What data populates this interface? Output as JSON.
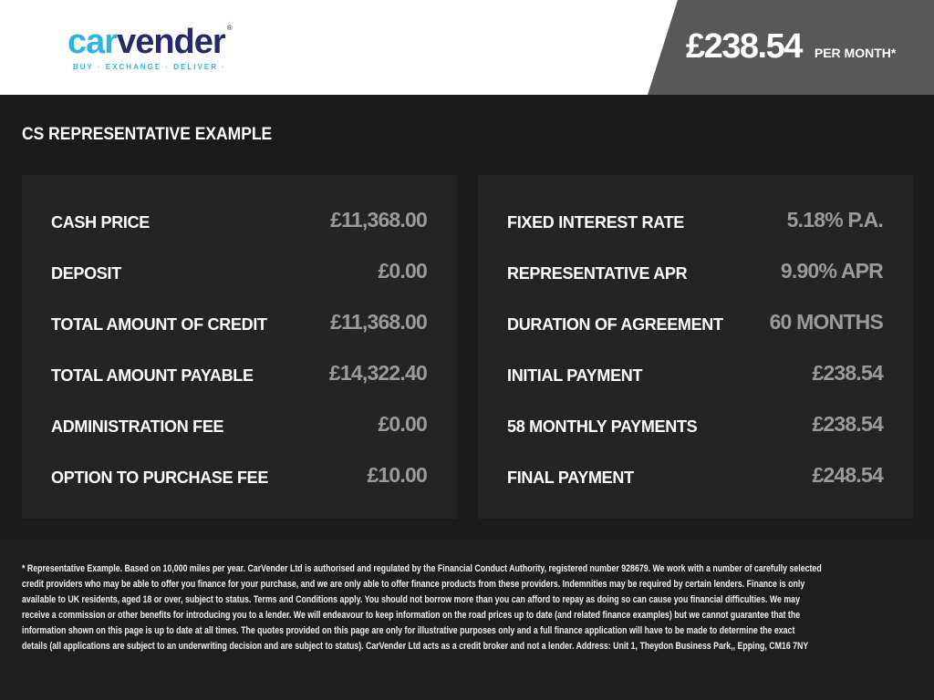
{
  "brand": {
    "name_part1": "car",
    "name_part2": "vender",
    "tagline": "BUY · EXCHANGE · DELIVER ·",
    "registered": "®",
    "colors": {
      "light": "#2fb3e3",
      "dark": "#242a6b"
    }
  },
  "header": {
    "price": "£238.54",
    "per_month": "PER MONTH*"
  },
  "section_title": "CS REPRESENTATIVE EXAMPLE",
  "left_panel": [
    {
      "label": "CASH PRICE",
      "value": "£11,368.00"
    },
    {
      "label": "DEPOSIT",
      "value": "£0.00"
    },
    {
      "label": "TOTAL AMOUNT OF CREDIT",
      "value": "£11,368.00"
    },
    {
      "label": "TOTAL AMOUNT PAYABLE",
      "value": "£14,322.40"
    },
    {
      "label": "ADMINISTRATION FEE",
      "value": "£0.00"
    },
    {
      "label": "OPTION TO PURCHASE FEE",
      "value": "£10.00"
    }
  ],
  "right_panel": [
    {
      "label": "FIXED INTEREST RATE",
      "value": "5.18% P.A."
    },
    {
      "label": "REPRESENTATIVE APR",
      "value": "9.90% APR"
    },
    {
      "label": "DURATION OF AGREEMENT",
      "value": "60 MONTHS"
    },
    {
      "label": "INITIAL PAYMENT",
      "value": "£238.54"
    },
    {
      "label": "58 MONTHLY PAYMENTS",
      "value": "£238.54"
    },
    {
      "label": "FINAL PAYMENT",
      "value": "£248.54"
    }
  ],
  "legal_lines": [
    "* Representative Example. Based on 10,000 miles per year. CarVender Ltd  is authorised and regulated by the Financial Conduct Authority, registered number 928679. We work with a number of carefully selected",
    "credit providers who may be able to offer you finance for your purchase, and we are only able to offer finance products from these providers. Indemnities may be required by certain lenders. Finance is only",
    "available to UK residents, aged 18 or over, subject to status. Terms and Conditions apply. You should not borrow more than you can afford to repay as doing so can cause you financial difficulties. We may",
    "receive a commission or other benefits for introducing you to a lender. We will endeavour to keep information on the road prices up to date (and related finance examples) but we cannot guarantee that the",
    "information shown on this page is up to date at all times. The quotes provided on this page are only for illustrative purposes only and a full finance application will have to be made to determine the exact",
    "details (all applications are subject to an underwriting decision and are subject to status). CarVender Ltd  acts as a credit broker and not a lender. Address: Unit 1, Theydon Business Park,, Epping, CM16 7NY"
  ]
}
